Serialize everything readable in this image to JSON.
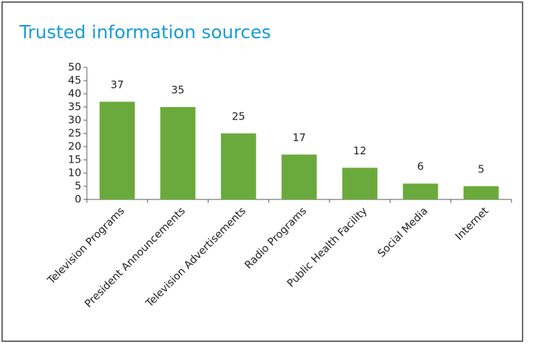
{
  "chart_data": {
    "type": "bar",
    "title": "Trusted information sources",
    "categories": [
      "Television Programs",
      "President Announcements",
      "Television Advertisements",
      "Radio Programs",
      "Public Health Facility",
      "Social Media",
      "Internet"
    ],
    "values": [
      37,
      35,
      25,
      17,
      12,
      6,
      5
    ],
    "color": "#6aaa3c",
    "ylim": [
      0,
      50
    ],
    "yticks": [
      0,
      5,
      10,
      15,
      20,
      25,
      30,
      35,
      40,
      45,
      50
    ]
  }
}
